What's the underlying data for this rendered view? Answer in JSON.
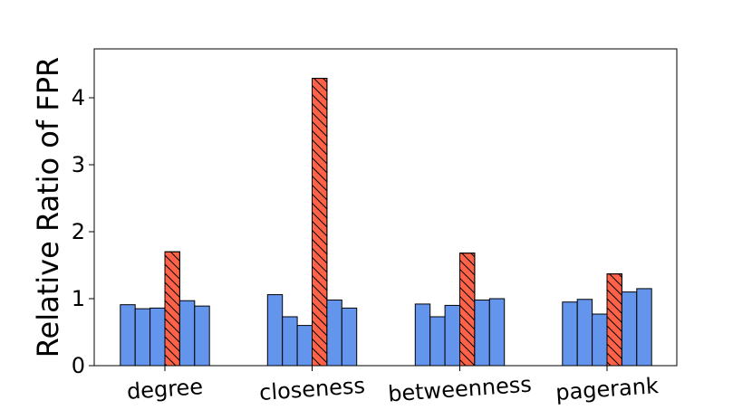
{
  "chart_data": {
    "type": "bar",
    "title": "",
    "xlabel": "",
    "ylabel": "Relative Ratio of FPR",
    "ylim": [
      0,
      4.73
    ],
    "yticks": [
      "0",
      "1",
      "2",
      "3",
      "4"
    ],
    "categories": [
      "degree",
      "closeness",
      "betweenness",
      "pagerank"
    ],
    "bars_per_group": 6,
    "highlight_index": 3,
    "colors": {
      "base": "#6495ed",
      "highlight": "#ff6347",
      "edge": "#000000"
    },
    "values": [
      [
        0.91,
        0.85,
        0.86,
        1.7,
        0.97,
        0.89
      ],
      [
        1.06,
        0.73,
        0.6,
        4.29,
        0.98,
        0.86
      ],
      [
        0.92,
        0.73,
        0.9,
        1.68,
        0.98,
        1.0
      ],
      [
        0.95,
        0.99,
        0.77,
        1.37,
        1.1,
        1.15
      ]
    ],
    "legend": "none",
    "grid": false
  }
}
